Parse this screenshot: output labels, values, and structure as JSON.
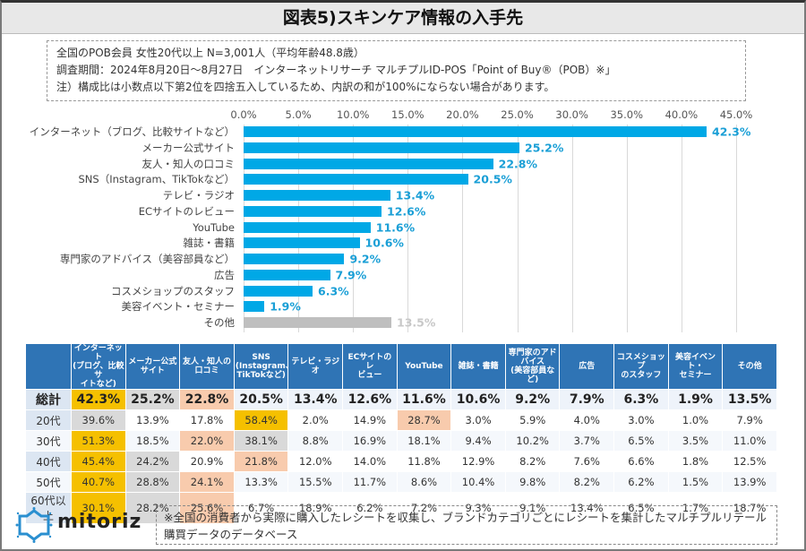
{
  "title": "図表5)スキンケア情報の入手先",
  "info": {
    "line1": "全国のPOB会員 女性20代以上 N=3,001人（平均年齢48.8歳）",
    "line2": "調査期間：2024年8月20日～8月27日　インターネットリサーチ マルチプルID-POS「Point of Buy®（POB）※」",
    "line3": "注）構成比は小数点以下第2位を四捨五入しているため、内訳の和が100%にならない場合があります。"
  },
  "chart_data": {
    "type": "bar",
    "orientation": "horizontal",
    "categories": [
      "インターネット（ブログ、比較サイトなど）",
      "メーカー公式サイト",
      "友人・知人の口コミ",
      "SNS（Instagram、TikTokなど）",
      "テレビ・ラジオ",
      "ECサイトのレビュー",
      "YouTube",
      "雑誌・書籍",
      "専門家のアドバイス（美容部員など）",
      "広告",
      "コスメショップのスタッフ",
      "美容イベント・セミナー",
      "その他"
    ],
    "values": [
      42.3,
      25.2,
      22.8,
      20.5,
      13.4,
      12.6,
      11.6,
      10.6,
      9.2,
      7.9,
      6.3,
      1.9,
      13.5
    ],
    "value_labels": [
      "42.3%",
      "25.2%",
      "22.8%",
      "20.5%",
      "13.4%",
      "12.6%",
      "11.6%",
      "10.6%",
      "9.2%",
      "7.9%",
      "6.3%",
      "1.9%",
      "13.5%"
    ],
    "xlim": [
      0,
      45
    ],
    "ticks": [
      "0.0%",
      "5.0%",
      "10.0%",
      "15.0%",
      "20.0%",
      "25.0%",
      "30.0%",
      "35.0%",
      "40.0%",
      "45.0%"
    ],
    "axis_position": "top",
    "grid": true,
    "colors": {
      "bar": "#00a8e6",
      "other_bar": "#bfbfbf",
      "label": "#1a9fd6",
      "other_label": "#c8c8c8"
    }
  },
  "table": {
    "headers": [
      "インターネット\n(ブログ、比較サ\nイトなど)",
      "メーカー公式\nサイト",
      "友人・知人の\n口コミ",
      "SNS\n(Instagram、\nTikTokなど)",
      "テレビ・ラジオ",
      "ECサイトのレ\nビュー",
      "YouTube",
      "雑誌・書籍",
      "専門家のアド\nバイス\n(美容部員など)",
      "広告",
      "コスメショップ\nのスタッフ",
      "美容イベント・\nセミナー",
      "その他"
    ],
    "rows": [
      {
        "label": "総計",
        "values": [
          "42.3%",
          "25.2%",
          "22.8%",
          "20.5%",
          "13.4%",
          "12.6%",
          "11.6%",
          "10.6%",
          "9.2%",
          "7.9%",
          "6.3%",
          "1.9%",
          "13.5%"
        ],
        "highlights": {
          "0": "gold",
          "1": "gray",
          "2": "peach"
        }
      },
      {
        "label": "20代",
        "values": [
          "39.6%",
          "13.9%",
          "17.8%",
          "58.4%",
          "2.0%",
          "14.9%",
          "28.7%",
          "3.0%",
          "5.9%",
          "4.0%",
          "3.0%",
          "1.0%",
          "7.9%"
        ],
        "highlights": {
          "0": "gray",
          "3": "gold",
          "6": "peach"
        }
      },
      {
        "label": "30代",
        "values": [
          "51.3%",
          "18.5%",
          "22.0%",
          "38.1%",
          "8.8%",
          "16.9%",
          "18.1%",
          "9.4%",
          "10.2%",
          "3.7%",
          "6.5%",
          "3.5%",
          "11.0%"
        ],
        "highlights": {
          "0": "gold",
          "2": "peach",
          "3": "gray"
        }
      },
      {
        "label": "40代",
        "values": [
          "45.4%",
          "24.2%",
          "20.9%",
          "21.8%",
          "12.0%",
          "14.0%",
          "11.8%",
          "12.9%",
          "8.2%",
          "7.6%",
          "6.6%",
          "1.8%",
          "12.5%"
        ],
        "highlights": {
          "0": "gold",
          "1": "gray",
          "3": "peach"
        }
      },
      {
        "label": "50代",
        "values": [
          "40.7%",
          "28.8%",
          "24.1%",
          "13.3%",
          "15.5%",
          "11.7%",
          "8.6%",
          "10.4%",
          "9.8%",
          "8.2%",
          "6.2%",
          "1.5%",
          "13.9%"
        ],
        "highlights": {
          "0": "gold",
          "1": "gray",
          "2": "peach"
        }
      },
      {
        "label": "60代以上",
        "values": [
          "30.1%",
          "28.2%",
          "25.6%",
          "6.7%",
          "18.9%",
          "6.2%",
          "7.2%",
          "9.3%",
          "9.1%",
          "13.4%",
          "6.5%",
          "1.7%",
          "18.7%"
        ],
        "highlights": {
          "0": "gold",
          "1": "gray",
          "2": "peach"
        }
      }
    ],
    "highlight_colors": {
      "gold": "#f5c000",
      "gray": "#d9d9d9",
      "peach": "#f8cbad"
    },
    "header_color": "#2f74b5"
  },
  "logo": {
    "text": "mitoriz",
    "icon": "mitoriz-logo-icon"
  },
  "footnote": "※全国の消費者から実際に購入したレシートを収集し、ブランドカテゴリごとにレシートを集計したマルチプルリテール購買データのデータベース"
}
